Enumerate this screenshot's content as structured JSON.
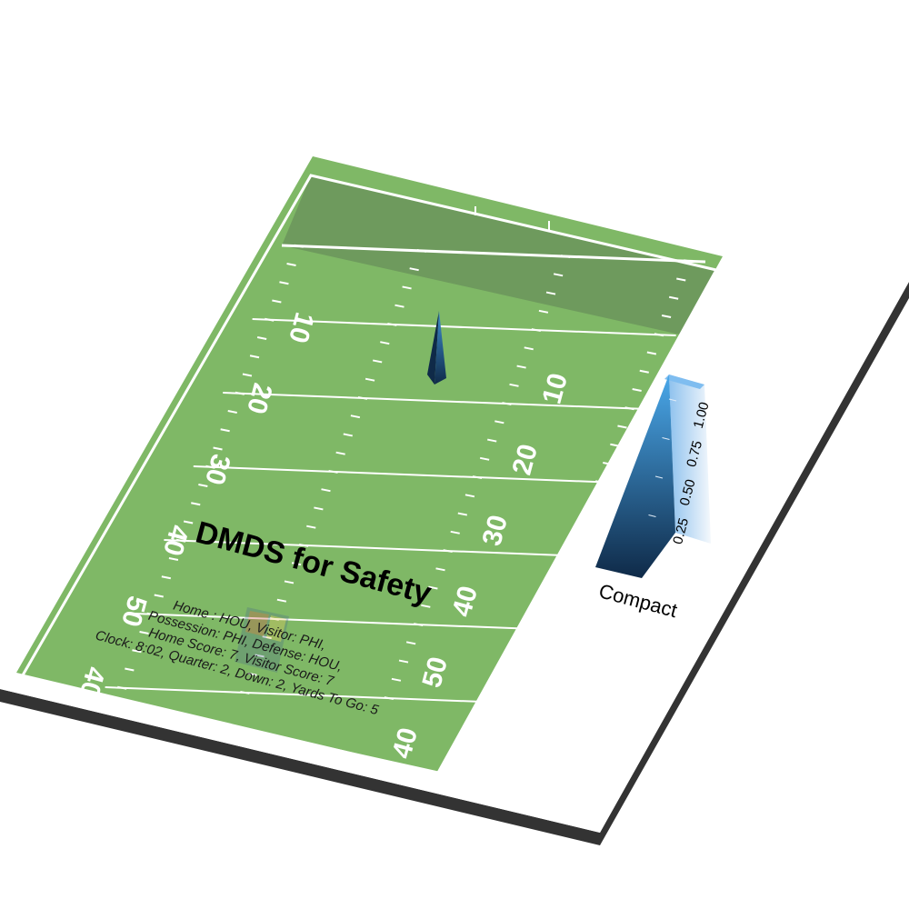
{
  "chart_data": {
    "type": "field-density-3d",
    "title": "DMDS for Safety",
    "game_info": {
      "line1": "Home : HOU, Visitor: PHI,",
      "line2": "Possession: PHI, Defense: HOU,",
      "line3": "Home Score: 7, Visitor Score: 7",
      "line4": "Clock: 8:02, Quarter: 2, Down: 2, Yards To Go: 5"
    },
    "yard_labels_left": [
      "10",
      "20",
      "30",
      "40",
      "50",
      "40"
    ],
    "yard_labels_right": [
      "10",
      "20",
      "30",
      "40",
      "50",
      "40"
    ],
    "density_peak": {
      "yard_line": 10,
      "value": 1.0
    },
    "colorbar": {
      "label": "Compact",
      "ticks": [
        "0.25",
        "0.50",
        "0.75",
        "1.00"
      ],
      "range": [
        0.0,
        1.0
      ],
      "color_low": "#0f2a48",
      "color_high": "#4aa8ea"
    },
    "colors": {
      "field": "#7fb866",
      "endzone": "#6e9a5d",
      "field_lines": "#ffffff",
      "title": "#000000",
      "info_text": "#1a1a1a",
      "slab_edge": "#333333"
    }
  }
}
